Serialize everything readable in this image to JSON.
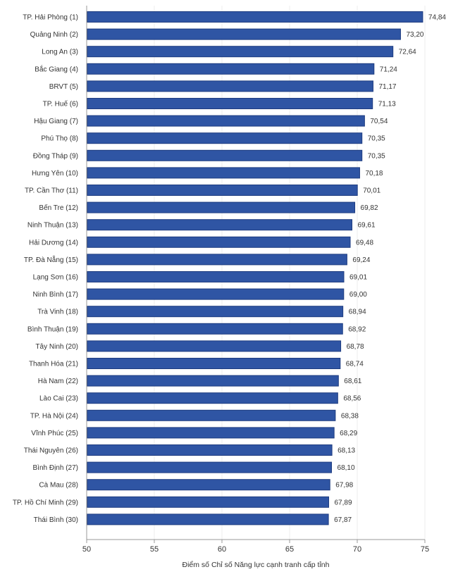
{
  "chart_data": {
    "type": "bar",
    "orientation": "horizontal",
    "title": "",
    "xlabel": "Điểm số Chỉ số Năng lực cạnh tranh cấp tỉnh",
    "ylabel": "",
    "xlim": [
      50,
      75
    ],
    "xticks": [
      50,
      55,
      60,
      65,
      70,
      75
    ],
    "grid": true,
    "bar_color": "#2f55a4",
    "categories": [
      "TP. Hải Phòng (1)",
      "Quảng Ninh (2)",
      "Long An (3)",
      "Bắc Giang (4)",
      "BRVT (5)",
      "TP. Huế (6)",
      "Hậu Giang (7)",
      "Phú Thọ (8)",
      "Đồng Tháp (9)",
      "Hưng Yên (10)",
      "TP. Cần Thơ (11)",
      "Bến Tre (12)",
      "Ninh Thuận (13)",
      "Hải Dương (14)",
      "TP. Đà Nẵng (15)",
      "Lạng Sơn (16)",
      "Ninh Bình (17)",
      "Trà Vinh (18)",
      "Bình Thuận (19)",
      "Tây Ninh (20)",
      "Thanh Hóa (21)",
      "Hà Nam (22)",
      "Lào Cai (23)",
      "TP. Hà Nội (24)",
      "Vĩnh Phúc (25)",
      "Thái Nguyên (26)",
      "Bình Định (27)",
      "Cà Mau (28)",
      "TP. Hồ Chí Minh (29)",
      "Thái Bình (30)"
    ],
    "values": [
      74.84,
      73.2,
      72.64,
      71.24,
      71.17,
      71.13,
      70.54,
      70.35,
      70.35,
      70.18,
      70.01,
      69.82,
      69.61,
      69.48,
      69.24,
      69.01,
      69.0,
      68.94,
      68.92,
      68.78,
      68.74,
      68.61,
      68.56,
      68.38,
      68.29,
      68.13,
      68.1,
      67.98,
      67.89,
      67.87
    ],
    "value_labels": [
      "74,84",
      "73,20",
      "72,64",
      "71,24",
      "71,17",
      "71,13",
      "70,54",
      "70,35",
      "70,35",
      "70,18",
      "70,01",
      "69,82",
      "69,61",
      "69,48",
      "69,24",
      "69,01",
      "69,00",
      "68,94",
      "68,92",
      "68,78",
      "68,74",
      "68,61",
      "68,56",
      "68,38",
      "68,29",
      "68,13",
      "68,10",
      "67,98",
      "67,89",
      "67,87"
    ]
  }
}
